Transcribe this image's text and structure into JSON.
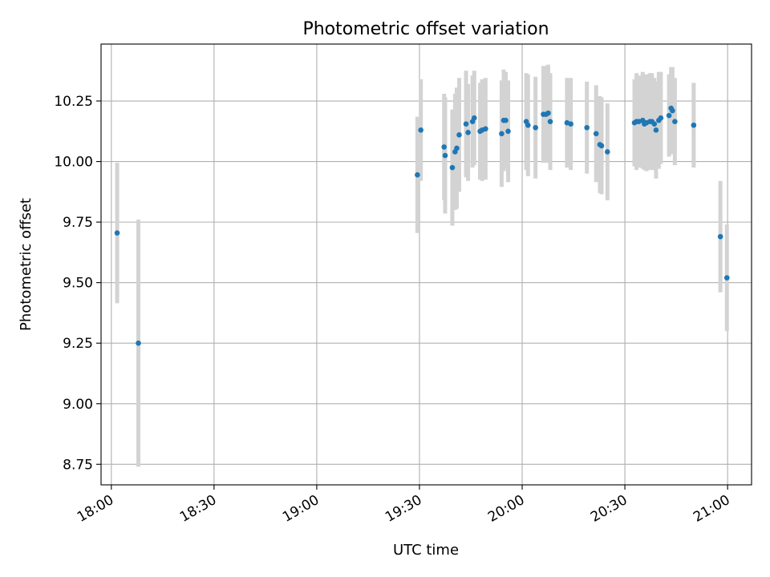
{
  "chart_data": {
    "type": "scatter",
    "title": "Photometric offset variation",
    "xlabel": "UTC time",
    "ylabel": "Photometric offset",
    "xlim": [
      1077,
      1267
    ],
    "ylim": [
      8.665,
      10.485
    ],
    "grid": true,
    "x_tick_values": [
      1080,
      1110,
      1140,
      1170,
      1200,
      1230,
      1260
    ],
    "x_tick_labels": [
      "18:00",
      "18:30",
      "19:00",
      "19:30",
      "20:00",
      "20:30",
      "21:00"
    ],
    "y_tick_values": [
      8.75,
      9.0,
      9.25,
      9.5,
      9.75,
      10.0,
      10.25
    ],
    "y_tick_labels": [
      "8.75",
      "9.00",
      "9.25",
      "9.50",
      "9.75",
      "10.00",
      "10.25"
    ],
    "series": [
      {
        "name": "Photometric offset",
        "x_minutes": [
          1081.7,
          1087.9,
          1169.4,
          1170.4,
          1177.2,
          1177.5,
          1179.6,
          1180.4,
          1180.9,
          1181.6,
          1183.6,
          1184.2,
          1185.5,
          1186.0,
          1187.7,
          1188.3,
          1189.3,
          1194.0,
          1194.6,
          1195.2,
          1195.9,
          1201.2,
          1201.7,
          1203.9,
          1206.2,
          1207.0,
          1207.6,
          1208.2,
          1213.1,
          1214.2,
          1218.9,
          1221.6,
          1222.7,
          1223.2,
          1224.9,
          1232.8,
          1233.4,
          1234.1,
          1235.2,
          1235.7,
          1236.3,
          1237.3,
          1237.9,
          1238.6,
          1239.1,
          1239.9,
          1240.5,
          1242.9,
          1243.5,
          1243.9,
          1244.6,
          1250.1,
          1257.9,
          1259.8
        ],
        "y": [
          9.705,
          9.25,
          9.945,
          10.13,
          10.06,
          10.025,
          9.975,
          10.04,
          10.055,
          10.11,
          10.155,
          10.12,
          10.165,
          10.18,
          10.125,
          10.13,
          10.135,
          10.115,
          10.17,
          10.17,
          10.125,
          10.165,
          10.15,
          10.14,
          10.195,
          10.195,
          10.2,
          10.165,
          10.16,
          10.155,
          10.14,
          10.115,
          10.07,
          10.065,
          10.04,
          10.16,
          10.165,
          10.165,
          10.17,
          10.155,
          10.16,
          10.165,
          10.165,
          10.155,
          10.13,
          10.17,
          10.18,
          10.19,
          10.22,
          10.21,
          10.165,
          10.15,
          9.69,
          9.52
        ],
        "err": [
          0.29,
          0.51,
          0.24,
          0.21,
          0.22,
          0.24,
          0.24,
          0.24,
          0.25,
          0.235,
          0.22,
          0.2,
          0.19,
          0.195,
          0.2,
          0.21,
          0.21,
          0.22,
          0.21,
          0.2,
          0.21,
          0.2,
          0.21,
          0.21,
          0.2,
          0.2,
          0.2,
          0.2,
          0.185,
          0.19,
          0.19,
          0.2,
          0.2,
          0.2,
          0.2,
          0.18,
          0.2,
          0.19,
          0.2,
          0.19,
          0.2,
          0.2,
          0.2,
          0.19,
          0.2,
          0.2,
          0.19,
          0.17,
          0.17,
          0.18,
          0.18,
          0.175,
          0.23,
          0.22
        ]
      }
    ],
    "colors": {
      "marker": "#1f77b4",
      "errorbar": "#d3d3d3",
      "grid": "#b0b0b0",
      "axis": "#000000"
    }
  }
}
